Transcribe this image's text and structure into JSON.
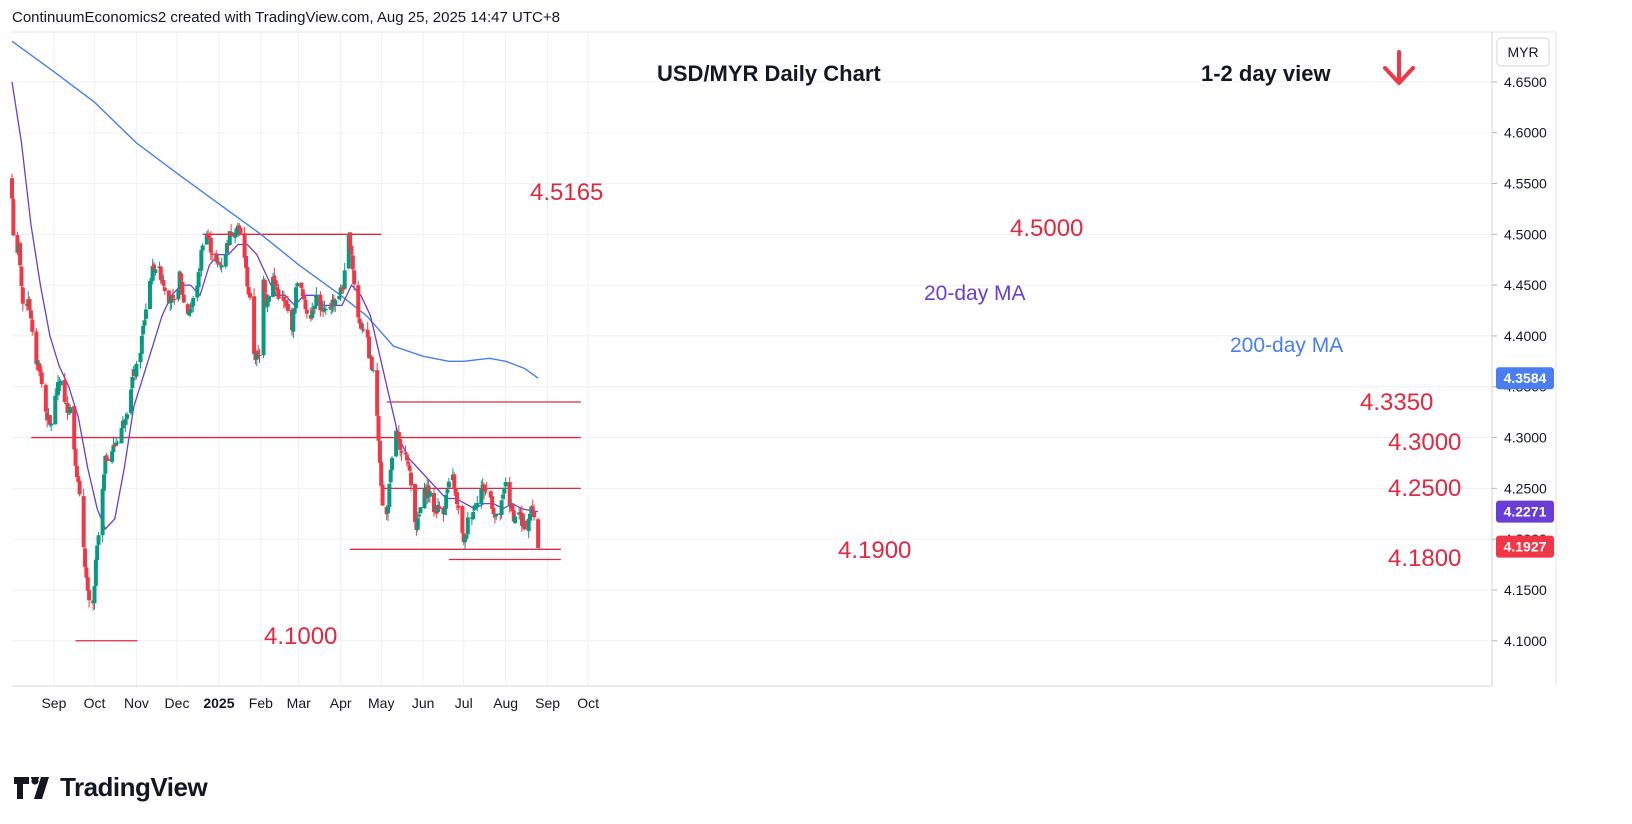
{
  "header": {
    "credit": "ContinuumEconomics2 created with TradingView.com, Aug 25, 2025 14:47 UTC+8"
  },
  "branding": {
    "logo_text": "TradingView",
    "logo_icon": "tradingview-logo-icon"
  },
  "colors": {
    "up": "#089981",
    "down": "#f23645",
    "ma20": "#6a3dd6",
    "ma200": "#4a7ef0",
    "level": "#e02840",
    "grid": "#eef1f5",
    "axis_text": "#131722"
  },
  "chart_data": {
    "type": "candlestick",
    "title": "USD/MYR Daily Chart",
    "subtitle": "1-2 day view",
    "bias_icon": "down-arrow-icon",
    "currency_label": "MYR",
    "x_labels": [
      "Sep",
      "Oct",
      "Nov",
      "Dec",
      "2025",
      "Feb",
      "Mar",
      "Apr",
      "May",
      "Jun",
      "Jul",
      "Aug",
      "Sep",
      "Oct"
    ],
    "y_ticks": [
      "4.6500",
      "4.6000",
      "4.5500",
      "4.5000",
      "4.4500",
      "4.4000",
      "4.3500",
      "4.3000",
      "4.2500",
      "4.2000",
      "4.1500",
      "4.1000"
    ],
    "y_range": [
      4.0555,
      4.6991
    ],
    "price_tags": [
      {
        "label": "4.3584",
        "value": 4.3584,
        "color": "#4a7ef0"
      },
      {
        "label": "4.2271",
        "value": 4.2271,
        "color": "#6a3dd6"
      },
      {
        "label": "4.1927",
        "value": 4.1927,
        "color": "#f23645"
      }
    ],
    "levels": [
      {
        "label": "4.5165",
        "value": 4.5165
      },
      {
        "label": "4.5000",
        "value": 4.5
      },
      {
        "label": "4.3350",
        "value": 4.335
      },
      {
        "label": "4.3000",
        "value": 4.3
      },
      {
        "label": "4.2500",
        "value": 4.25
      },
      {
        "label": "4.1900",
        "value": 4.19
      },
      {
        "label": "4.1800",
        "value": 4.18
      },
      {
        "label": "4.1000",
        "value": 4.1
      }
    ],
    "ma_labels": [
      {
        "label": "20-day MA",
        "color": "#6a3dd6"
      },
      {
        "label": "200-day MA",
        "color": "#4a7ef0"
      }
    ],
    "price_path": [
      [
        "2024-08-01",
        4.56
      ],
      [
        "2024-08-04",
        4.46
      ],
      [
        "2024-08-07",
        4.49
      ],
      [
        "2024-08-10",
        4.42
      ],
      [
        "2024-08-14",
        4.44
      ],
      [
        "2024-08-18",
        4.38
      ],
      [
        "2024-08-22",
        4.37
      ],
      [
        "2024-08-26",
        4.33
      ],
      [
        "2024-08-30",
        4.31
      ],
      [
        "2024-09-03",
        4.34
      ],
      [
        "2024-09-07",
        4.36
      ],
      [
        "2024-09-10",
        4.33
      ],
      [
        "2024-09-14",
        4.33
      ],
      [
        "2024-09-16",
        4.3
      ],
      [
        "2024-09-20",
        4.25
      ],
      [
        "2024-09-24",
        4.19
      ],
      [
        "2024-09-27",
        4.14
      ],
      [
        "2024-09-30",
        4.12
      ],
      [
        "2024-10-03",
        4.18
      ],
      [
        "2024-10-06",
        4.22
      ],
      [
        "2024-10-10",
        4.28
      ],
      [
        "2024-10-16",
        4.29
      ],
      [
        "2024-10-22",
        4.31
      ],
      [
        "2024-10-26",
        4.33
      ],
      [
        "2024-10-30",
        4.36
      ],
      [
        "2024-11-03",
        4.37
      ],
      [
        "2024-11-07",
        4.41
      ],
      [
        "2024-11-11",
        4.45
      ],
      [
        "2024-11-15",
        4.47
      ],
      [
        "2024-11-20",
        4.46
      ],
      [
        "2024-11-25",
        4.44
      ],
      [
        "2024-11-30",
        4.43
      ],
      [
        "2024-12-04",
        4.46
      ],
      [
        "2024-12-08",
        4.42
      ],
      [
        "2024-12-13",
        4.43
      ],
      [
        "2024-12-18",
        4.46
      ],
      [
        "2024-12-22",
        4.51
      ],
      [
        "2024-12-26",
        4.49
      ],
      [
        "2024-12-31",
        4.47
      ],
      [
        "2025-01-03",
        4.47
      ],
      [
        "2025-01-06",
        4.48
      ],
      [
        "2025-01-10",
        4.5
      ],
      [
        "2025-01-15",
        4.51
      ],
      [
        "2025-01-20",
        4.49
      ],
      [
        "2025-01-22",
        4.46
      ],
      [
        "2025-01-25",
        4.43
      ],
      [
        "2025-01-28",
        4.38
      ],
      [
        "2025-02-01",
        4.38
      ],
      [
        "2025-02-03",
        4.47
      ],
      [
        "2025-02-06",
        4.43
      ],
      [
        "2025-02-10",
        4.46
      ],
      [
        "2025-02-15",
        4.44
      ],
      [
        "2025-02-20",
        4.43
      ],
      [
        "2025-02-25",
        4.41
      ],
      [
        "2025-03-01",
        4.46
      ],
      [
        "2025-03-06",
        4.43
      ],
      [
        "2025-03-10",
        4.42
      ],
      [
        "2025-03-15",
        4.44
      ],
      [
        "2025-03-20",
        4.42
      ],
      [
        "2025-03-25",
        4.43
      ],
      [
        "2025-03-31",
        4.44
      ],
      [
        "2025-04-04",
        4.45
      ],
      [
        "2025-04-08",
        4.5
      ],
      [
        "2025-04-10",
        4.48
      ],
      [
        "2025-04-13",
        4.43
      ],
      [
        "2025-04-16",
        4.41
      ],
      [
        "2025-04-20",
        4.41
      ],
      [
        "2025-04-23",
        4.38
      ],
      [
        "2025-04-26",
        4.36
      ],
      [
        "2025-04-29",
        4.32
      ],
      [
        "2025-05-02",
        4.25
      ],
      [
        "2025-05-04",
        4.2
      ],
      [
        "2025-05-07",
        4.24
      ],
      [
        "2025-05-10",
        4.28
      ],
      [
        "2025-05-13",
        4.31
      ],
      [
        "2025-05-16",
        4.28
      ],
      [
        "2025-05-20",
        4.29
      ],
      [
        "2025-05-24",
        4.25
      ],
      [
        "2025-05-28",
        4.21
      ],
      [
        "2025-06-01",
        4.24
      ],
      [
        "2025-06-05",
        4.25
      ],
      [
        "2025-06-09",
        4.23
      ],
      [
        "2025-06-13",
        4.23
      ],
      [
        "2025-06-17",
        4.23
      ],
      [
        "2025-06-20",
        4.25
      ],
      [
        "2025-06-24",
        4.26
      ],
      [
        "2025-06-27",
        4.23
      ],
      [
        "2025-06-30",
        4.22
      ],
      [
        "2025-07-02",
        4.19
      ],
      [
        "2025-07-05",
        4.22
      ],
      [
        "2025-07-09",
        4.23
      ],
      [
        "2025-07-14",
        4.25
      ],
      [
        "2025-07-18",
        4.25
      ],
      [
        "2025-07-22",
        4.24
      ],
      [
        "2025-07-25",
        4.22
      ],
      [
        "2025-07-28",
        4.22
      ],
      [
        "2025-08-01",
        4.25
      ],
      [
        "2025-08-03",
        4.27
      ],
      [
        "2025-08-05",
        4.23
      ],
      [
        "2025-08-09",
        4.22
      ],
      [
        "2025-08-12",
        4.23
      ],
      [
        "2025-08-14",
        4.21
      ],
      [
        "2025-08-18",
        4.22
      ],
      [
        "2025-08-21",
        4.23
      ],
      [
        "2025-08-24",
        4.22
      ],
      [
        "2025-08-25",
        4.1927
      ]
    ],
    "ma20_path": [
      [
        "2024-08-01",
        4.65
      ],
      [
        "2024-08-08",
        4.59
      ],
      [
        "2024-08-15",
        4.51
      ],
      [
        "2024-08-22",
        4.45
      ],
      [
        "2024-08-29",
        4.4
      ],
      [
        "2024-09-05",
        4.37
      ],
      [
        "2024-09-12",
        4.35
      ],
      [
        "2024-09-19",
        4.32
      ],
      [
        "2024-09-26",
        4.27
      ],
      [
        "2024-10-03",
        4.23
      ],
      [
        "2024-10-09",
        4.21
      ],
      [
        "2024-10-16",
        4.22
      ],
      [
        "2024-10-23",
        4.27
      ],
      [
        "2024-10-30",
        4.33
      ],
      [
        "2024-11-06",
        4.36
      ],
      [
        "2024-11-13",
        4.39
      ],
      [
        "2024-11-20",
        4.42
      ],
      [
        "2024-11-27",
        4.44
      ],
      [
        "2024-12-04",
        4.45
      ],
      [
        "2024-12-11",
        4.45
      ],
      [
        "2024-12-18",
        4.44
      ],
      [
        "2024-12-25",
        4.47
      ],
      [
        "2025-01-01",
        4.48
      ],
      [
        "2025-01-08",
        4.48
      ],
      [
        "2025-01-15",
        4.49
      ],
      [
        "2025-01-22",
        4.49
      ],
      [
        "2025-01-29",
        4.48
      ],
      [
        "2025-02-05",
        4.46
      ],
      [
        "2025-02-12",
        4.44
      ],
      [
        "2025-02-19",
        4.44
      ],
      [
        "2025-02-26",
        4.43
      ],
      [
        "2025-03-05",
        4.44
      ],
      [
        "2025-03-12",
        4.44
      ],
      [
        "2025-03-19",
        4.43
      ],
      [
        "2025-03-26",
        4.43
      ],
      [
        "2025-04-02",
        4.43
      ],
      [
        "2025-04-09",
        4.45
      ],
      [
        "2025-04-16",
        4.44
      ],
      [
        "2025-04-23",
        4.42
      ],
      [
        "2025-04-30",
        4.38
      ],
      [
        "2025-05-07",
        4.34
      ],
      [
        "2025-05-14",
        4.3
      ],
      [
        "2025-05-21",
        4.28
      ],
      [
        "2025-05-28",
        4.27
      ],
      [
        "2025-06-04",
        4.26
      ],
      [
        "2025-06-11",
        4.25
      ],
      [
        "2025-06-18",
        4.24
      ],
      [
        "2025-06-25",
        4.24
      ],
      [
        "2025-07-02",
        4.235
      ],
      [
        "2025-07-09",
        4.23
      ],
      [
        "2025-07-16",
        4.235
      ],
      [
        "2025-07-23",
        4.235
      ],
      [
        "2025-07-30",
        4.23
      ],
      [
        "2025-08-06",
        4.235
      ],
      [
        "2025-08-13",
        4.23
      ],
      [
        "2025-08-20",
        4.228
      ],
      [
        "2025-08-25",
        4.2271
      ]
    ],
    "ma200_path": [
      [
        "2024-08-01",
        4.69
      ],
      [
        "2024-09-01",
        4.66
      ],
      [
        "2024-10-01",
        4.63
      ],
      [
        "2024-11-01",
        4.59
      ],
      [
        "2024-12-01",
        4.56
      ],
      [
        "2025-01-01",
        4.53
      ],
      [
        "2025-02-01",
        4.5
      ],
      [
        "2025-03-01",
        4.47
      ],
      [
        "2025-04-01",
        4.44
      ],
      [
        "2025-04-20",
        4.42
      ],
      [
        "2025-05-10",
        4.39
      ],
      [
        "2025-06-01",
        4.38
      ],
      [
        "2025-06-20",
        4.375
      ],
      [
        "2025-07-01",
        4.375
      ],
      [
        "2025-07-20",
        4.378
      ],
      [
        "2025-08-01",
        4.375
      ],
      [
        "2025-08-15",
        4.368
      ],
      [
        "2025-08-25",
        4.3584
      ]
    ]
  }
}
